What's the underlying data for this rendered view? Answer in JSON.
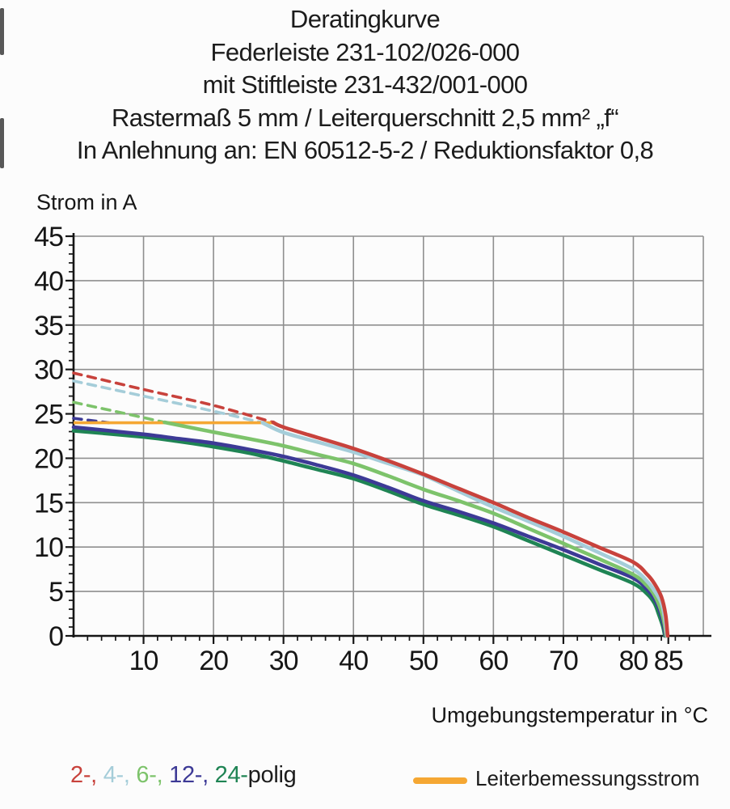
{
  "header": {
    "lines": [
      "Deratingkurve",
      "Federleiste 231-102/026-000",
      "mit Stiftleiste 231-432/001-000",
      "Rastermaß 5 mm / Leiterquerschnitt 2,5 mm² „f“",
      "In Anlehnung an: EN 60512-5-2 / Reduktionsfaktor 0,8"
    ]
  },
  "chart_data": {
    "type": "line",
    "title": "Deratingkurve",
    "xlabel": "Umgebungstemperatur in °C",
    "ylabel": "Strom in A",
    "xlim": [
      0,
      90
    ],
    "ylim": [
      0,
      45
    ],
    "x_major_ticks": [
      10,
      20,
      30,
      40,
      50,
      60,
      70,
      80,
      85
    ],
    "y_major_ticks": [
      0,
      5,
      10,
      15,
      20,
      25,
      30,
      35,
      40,
      45
    ],
    "x_minor_step": 2,
    "y_minor_step": 1,
    "grid": true,
    "grid_color": "#8F8F8F",
    "axis_color": "#161616",
    "conductor_rating": {
      "label": "Leiterbemessungsstrom",
      "value": 24,
      "x_range": [
        0,
        28.5
      ],
      "color": "#F5A733"
    },
    "series": [
      {
        "name": "2-polig",
        "color": "#C8423C",
        "dashed_points": [
          [
            0,
            29.6
          ],
          [
            10,
            27.75
          ],
          [
            20,
            25.95
          ],
          [
            28.5,
            24.05
          ]
        ],
        "solid_points": [
          [
            28.5,
            24.05
          ],
          [
            30,
            23.5
          ],
          [
            35,
            22.3
          ],
          [
            40,
            21.1
          ],
          [
            45,
            19.7
          ],
          [
            50,
            18.2
          ],
          [
            55,
            16.6
          ],
          [
            60,
            15.0
          ],
          [
            65,
            13.3
          ],
          [
            70,
            11.7
          ],
          [
            75,
            10.0
          ],
          [
            80,
            8.3
          ],
          [
            82,
            6.9
          ],
          [
            83,
            5.9
          ],
          [
            84,
            4.4
          ],
          [
            84.6,
            2.4
          ],
          [
            84.9,
            0
          ]
        ]
      },
      {
        "name": "4-polig",
        "color": "#A5CDD9",
        "dashed_points": [
          [
            0,
            28.7
          ],
          [
            10,
            27.0
          ],
          [
            20,
            25.3
          ],
          [
            27,
            24.0
          ]
        ],
        "solid_points": [
          [
            27,
            24.0
          ],
          [
            30,
            22.9
          ],
          [
            35,
            21.8
          ],
          [
            40,
            20.7
          ],
          [
            45,
            19.4
          ],
          [
            50,
            18.1
          ],
          [
            55,
            16.3
          ],
          [
            60,
            14.5
          ],
          [
            65,
            12.9
          ],
          [
            70,
            11.2
          ],
          [
            75,
            9.4
          ],
          [
            80,
            7.5
          ],
          [
            82,
            6.1
          ],
          [
            83,
            5.1
          ],
          [
            84,
            3.7
          ],
          [
            84.5,
            1.9
          ],
          [
            84.8,
            0
          ]
        ]
      },
      {
        "name": "6-polig",
        "color": "#7DC36B",
        "dashed_points": [
          [
            0,
            26.3
          ],
          [
            7,
            25.1
          ],
          [
            13,
            24.05
          ]
        ],
        "solid_points": [
          [
            13,
            24.05
          ],
          [
            20,
            22.95
          ],
          [
            25,
            22.2
          ],
          [
            30,
            21.4
          ],
          [
            35,
            20.4
          ],
          [
            40,
            19.4
          ],
          [
            45,
            18.0
          ],
          [
            50,
            16.5
          ],
          [
            55,
            15.2
          ],
          [
            60,
            13.8
          ],
          [
            65,
            12.1
          ],
          [
            70,
            10.4
          ],
          [
            75,
            8.7
          ],
          [
            80,
            6.9
          ],
          [
            82,
            5.6
          ],
          [
            83,
            4.6
          ],
          [
            83.9,
            3.0
          ],
          [
            84.4,
            1.5
          ],
          [
            84.7,
            0
          ]
        ]
      },
      {
        "name": "12-polig",
        "color": "#3D3A96",
        "dashed_points": [
          [
            0,
            24.5
          ],
          [
            5,
            24.0
          ]
        ],
        "solid_points": [
          [
            0,
            23.5
          ],
          [
            10,
            22.7
          ],
          [
            15,
            22.2
          ],
          [
            20,
            21.7
          ],
          [
            25,
            21.0
          ],
          [
            30,
            20.2
          ],
          [
            35,
            19.2
          ],
          [
            40,
            18.1
          ],
          [
            45,
            16.7
          ],
          [
            50,
            15.2
          ],
          [
            55,
            14.0
          ],
          [
            60,
            12.7
          ],
          [
            65,
            11.2
          ],
          [
            70,
            9.7
          ],
          [
            75,
            8.1
          ],
          [
            80,
            6.5
          ],
          [
            82,
            5.2
          ],
          [
            83,
            4.2
          ],
          [
            83.8,
            2.8
          ],
          [
            84.3,
            1.3
          ],
          [
            84.6,
            0
          ]
        ]
      },
      {
        "name": "24-polig",
        "color": "#1F8454",
        "dashed_points": [],
        "solid_points": [
          [
            0,
            23.1
          ],
          [
            10,
            22.4
          ],
          [
            15,
            21.9
          ],
          [
            20,
            21.3
          ],
          [
            25,
            20.6
          ],
          [
            30,
            19.7
          ],
          [
            35,
            18.7
          ],
          [
            40,
            17.7
          ],
          [
            45,
            16.3
          ],
          [
            50,
            14.8
          ],
          [
            55,
            13.6
          ],
          [
            60,
            12.3
          ],
          [
            65,
            10.7
          ],
          [
            70,
            9.1
          ],
          [
            75,
            7.5
          ],
          [
            80,
            5.9
          ],
          [
            82,
            4.7
          ],
          [
            83,
            3.7
          ],
          [
            83.6,
            2.5
          ],
          [
            84.2,
            1.1
          ],
          [
            84.5,
            0
          ]
        ]
      }
    ]
  },
  "legend": {
    "pole_segments": [
      {
        "text": "2-, ",
        "color": "#C8423C"
      },
      {
        "text": "4-, ",
        "color": "#A5CDD9"
      },
      {
        "text": "6-, ",
        "color": "#7DC36B"
      },
      {
        "text": "12-, ",
        "color": "#3D3A96"
      },
      {
        "text": "24-",
        "color": "#1F8454"
      },
      {
        "text": "polig",
        "color": "#1C1C1C"
      }
    ],
    "rating_label": "Leiterbemessungsstrom",
    "rating_color": "#F5A733"
  }
}
